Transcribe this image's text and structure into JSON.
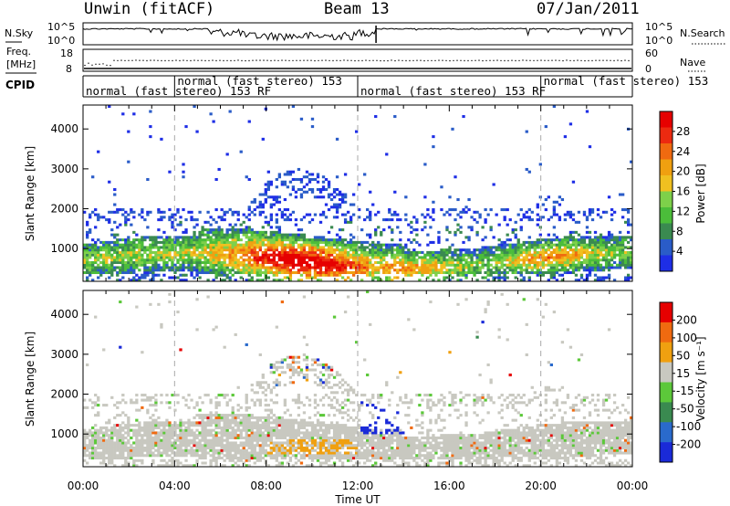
{
  "header": {
    "station": "Unwin (fitACF)",
    "beam": "Beam 13",
    "date": "07/Jan/2011"
  },
  "noise_panel": {
    "left_label": "N.Sky",
    "left_ticks": [
      "10^5",
      "10^0"
    ],
    "right_label": "N.Search",
    "right_ticks": [
      "10^5",
      "10^0"
    ]
  },
  "freq_panel": {
    "left_label_1": "Freq.",
    "left_label_2": "[MHz]",
    "left_ticks": [
      "18",
      "8"
    ],
    "right_label": "Nave",
    "right_ticks": [
      "60",
      "0"
    ]
  },
  "cpid": {
    "label": "CPID",
    "segments": [
      {
        "text": "normal (fast stereo) 153 RF",
        "start_h": 0
      },
      {
        "text": "normal (fast stereo) 153",
        "start_h": 4
      },
      {
        "text": "normal (fast stereo) 153 RF",
        "start_h": 12
      },
      {
        "text": "normal (fast stereo) 153",
        "start_h": 20
      }
    ]
  },
  "x_axis": {
    "label": "Time UT",
    "ticks": [
      "00:00",
      "04:00",
      "08:00",
      "12:00",
      "16:00",
      "20:00",
      "00:00"
    ]
  },
  "power_panel": {
    "ylabel": "Slant Range [km]",
    "yticks": [
      "4000",
      "3000",
      "2000",
      "1000"
    ],
    "colorbar_label": "Power [dB]",
    "colorbar_ticks": [
      "28",
      "24",
      "20",
      "16",
      "12",
      "8",
      "4"
    ],
    "colors": [
      "#1e2ee6",
      "#2a5cc8",
      "#3a8a50",
      "#4bbd3a",
      "#7ed04a",
      "#f0c020",
      "#f0a010",
      "#f06a10",
      "#ec2a10",
      "#e60000"
    ]
  },
  "velocity_panel": {
    "ylabel": "Slant Range [km]",
    "yticks": [
      "4000",
      "3000",
      "2000",
      "1000"
    ],
    "colorbar_label": "Velocity [m s⁻¹]",
    "colorbar_ticks": [
      "200",
      "100",
      "50",
      "15",
      "-15",
      "-50",
      "-100",
      "-200"
    ],
    "colors": [
      "#1a2ad8",
      "#2a6acc",
      "#3a8a50",
      "#5cc83a",
      "#c8c8c0",
      "#f0a010",
      "#f06a10",
      "#e60000"
    ]
  },
  "chart_data": {
    "type": "heatmap",
    "title": "Unwin (fitACF) Beam 13 07/Jan/2011",
    "xlabel": "Time UT",
    "ylabel": "Slant Range [km]",
    "x_range_h": [
      0,
      24
    ],
    "y_range_km": [
      180,
      4600
    ],
    "panels": [
      {
        "name": "Power",
        "units": "dB",
        "scale": [
          0,
          32
        ]
      },
      {
        "name": "Velocity",
        "units": "m s-1",
        "scale": [
          -250,
          250
        ]
      }
    ]
  }
}
